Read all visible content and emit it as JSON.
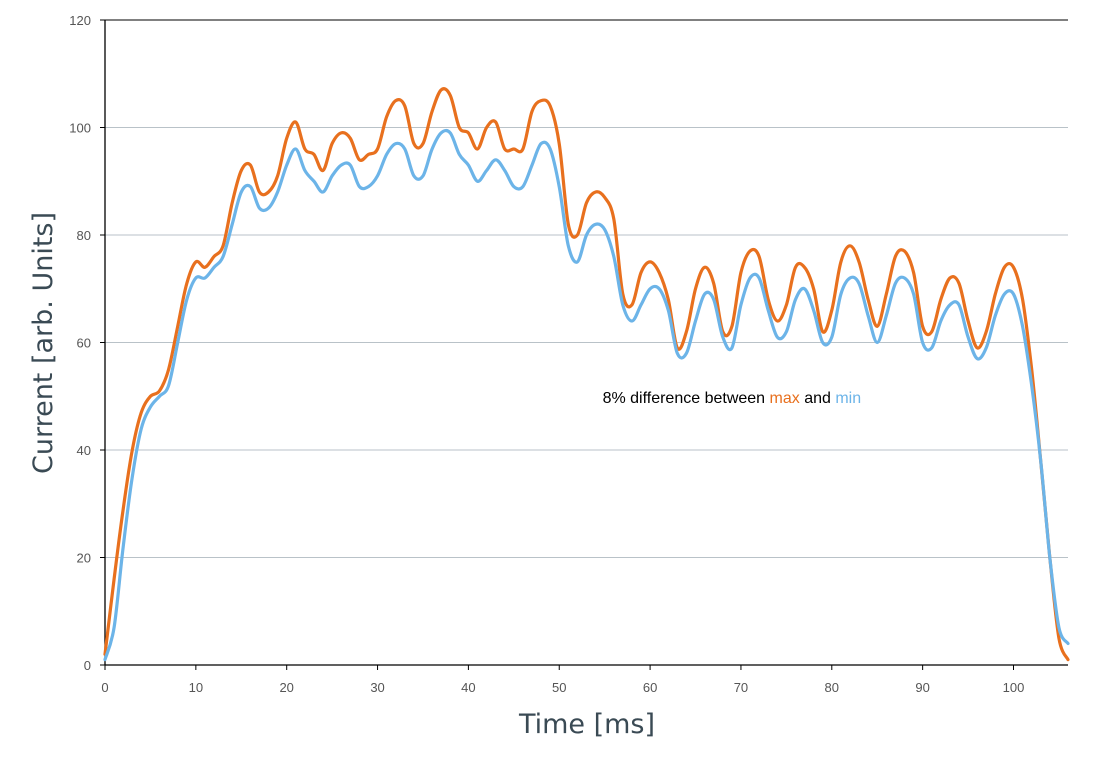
{
  "chart_data": {
    "type": "line",
    "title": "",
    "xlabel": "Time [ms]",
    "ylabel": "Current [arb. Units]",
    "xlim": [
      0,
      106
    ],
    "ylim": [
      0,
      120
    ],
    "xticks": [
      0,
      10,
      20,
      30,
      40,
      50,
      60,
      70,
      80,
      90,
      100
    ],
    "yticks": [
      0,
      20,
      40,
      60,
      80,
      100,
      120
    ],
    "grid": "horizontal",
    "legend": "none",
    "annotation": {
      "prefix": "8% difference between ",
      "max_word": "max",
      "middle": " and ",
      "min_word": "min",
      "x": 69,
      "y": 45
    },
    "series": [
      {
        "name": "max",
        "color": "#e8701e",
        "x": [
          0,
          1,
          2,
          3,
          4,
          5,
          6,
          7,
          8,
          9,
          10,
          11,
          12,
          13,
          14,
          15,
          16,
          17,
          18,
          19,
          20,
          21,
          22,
          23,
          24,
          25,
          26,
          27,
          28,
          29,
          30,
          31,
          32,
          33,
          34,
          35,
          36,
          37,
          38,
          39,
          40,
          41,
          42,
          43,
          44,
          45,
          46,
          47,
          48,
          49,
          50,
          51,
          52,
          53,
          54,
          55,
          56,
          57,
          58,
          59,
          60,
          61,
          62,
          63,
          64,
          65,
          66,
          67,
          68,
          69,
          70,
          71,
          72,
          73,
          74,
          75,
          76,
          77,
          78,
          79,
          80,
          81,
          82,
          83,
          84,
          85,
          86,
          87,
          88,
          89,
          90,
          91,
          92,
          93,
          94,
          95,
          96,
          97,
          98,
          99,
          100,
          101,
          102,
          103,
          104,
          105,
          106
        ],
        "values": [
          2,
          16,
          29,
          40,
          47,
          50,
          51,
          55,
          63,
          71,
          75,
          74,
          76,
          78,
          86,
          92,
          93,
          88,
          88,
          91,
          98,
          101,
          96,
          95,
          92,
          97,
          99,
          98,
          94,
          95,
          96,
          102,
          105,
          104,
          97,
          97,
          103,
          107,
          106,
          100,
          99,
          96,
          100,
          101,
          96,
          96,
          96,
          103,
          105,
          104,
          97,
          82,
          80,
          86,
          88,
          87,
          83,
          69,
          67,
          73,
          75,
          73,
          68,
          59,
          62,
          70,
          74,
          71,
          62,
          63,
          73,
          77,
          76,
          68,
          64,
          67,
          74,
          74,
          70,
          62,
          66,
          75,
          78,
          75,
          68,
          63,
          69,
          76,
          77,
          73,
          63,
          62,
          68,
          72,
          71,
          64,
          59,
          62,
          69,
          74,
          74,
          68,
          55,
          38,
          20,
          5,
          1
        ]
      },
      {
        "name": "min",
        "color": "#6cb4e8",
        "x": [
          0,
          1,
          2,
          3,
          4,
          5,
          6,
          7,
          8,
          9,
          10,
          11,
          12,
          13,
          14,
          15,
          16,
          17,
          18,
          19,
          20,
          21,
          22,
          23,
          24,
          25,
          26,
          27,
          28,
          29,
          30,
          31,
          32,
          33,
          34,
          35,
          36,
          37,
          38,
          39,
          40,
          41,
          42,
          43,
          44,
          45,
          46,
          47,
          48,
          49,
          50,
          51,
          52,
          53,
          54,
          55,
          56,
          57,
          58,
          59,
          60,
          61,
          62,
          63,
          64,
          65,
          66,
          67,
          68,
          69,
          70,
          71,
          72,
          73,
          74,
          75,
          76,
          77,
          78,
          79,
          80,
          81,
          82,
          83,
          84,
          85,
          86,
          87,
          88,
          89,
          90,
          91,
          92,
          93,
          94,
          95,
          96,
          97,
          98,
          99,
          100,
          101,
          102,
          103,
          104,
          105,
          106
        ],
        "values": [
          1,
          7,
          22,
          35,
          44,
          48,
          50,
          52,
          60,
          68,
          72,
          72,
          74,
          76,
          82,
          88,
          89,
          85,
          85,
          88,
          93,
          96,
          92,
          90,
          88,
          91,
          93,
          93,
          89,
          89,
          91,
          95,
          97,
          96,
          91,
          91,
          96,
          99,
          99,
          95,
          93,
          90,
          92,
          94,
          92,
          89,
          89,
          93,
          97,
          96,
          89,
          78,
          75,
          80,
          82,
          81,
          76,
          67,
          64,
          67,
          70,
          70,
          66,
          58,
          58,
          64,
          69,
          68,
          61,
          59,
          67,
          72,
          72,
          66,
          61,
          62,
          68,
          70,
          66,
          60,
          61,
          69,
          72,
          71,
          65,
          60,
          65,
          71,
          72,
          69,
          60,
          59,
          64,
          67,
          67,
          61,
          57,
          59,
          65,
          69,
          69,
          63,
          52,
          38,
          20,
          7,
          4
        ]
      }
    ]
  }
}
